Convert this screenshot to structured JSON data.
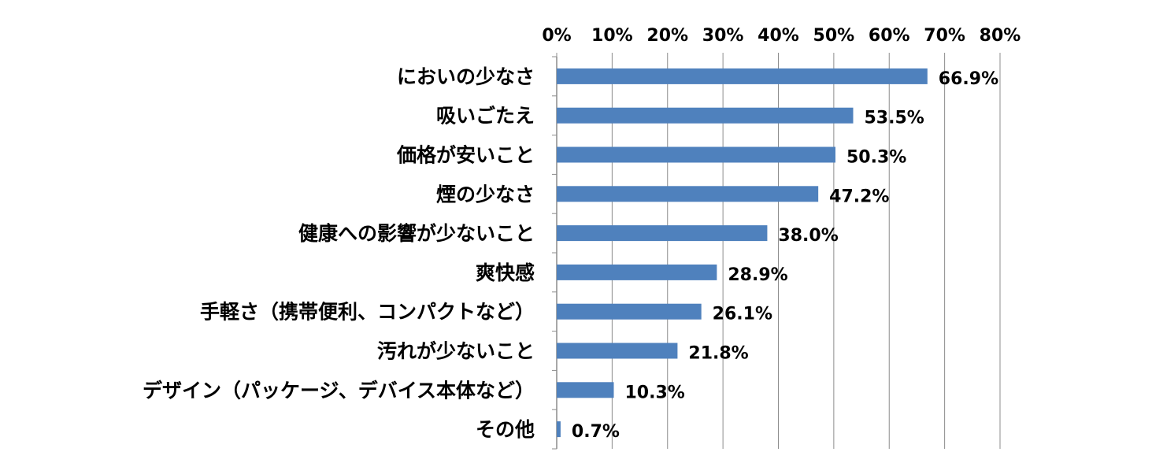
{
  "chart_data": {
    "type": "bar",
    "orientation": "horizontal",
    "title": "",
    "xlabel": "",
    "ylabel": "",
    "xlim": [
      0,
      80
    ],
    "x_ticks": [
      "0%",
      "10%",
      "20%",
      "30%",
      "40%",
      "50%",
      "60%",
      "70%",
      "80%"
    ],
    "axis_position": "top",
    "grid": true,
    "legend": "none",
    "bar_color": "#4F81BD",
    "categories": [
      "においの少なさ",
      "吸いごたえ",
      "価格が安いこと",
      "煙の少なさ",
      "健康への影響が少ないこと",
      "爽快感",
      "手軽さ（携帯便利、コンパクトなど）",
      "汚れが少ないこと",
      "デザイン（パッケージ、デバイス本体など）",
      "その他"
    ],
    "values": [
      66.9,
      53.5,
      50.3,
      47.2,
      38.0,
      28.9,
      26.1,
      21.8,
      10.3,
      0.7
    ],
    "data_labels": [
      "66.9%",
      "53.5%",
      "50.3%",
      "47.2%",
      "38.0%",
      "28.9%",
      "26.1%",
      "21.8%",
      "10.3%",
      "0.7%"
    ]
  }
}
